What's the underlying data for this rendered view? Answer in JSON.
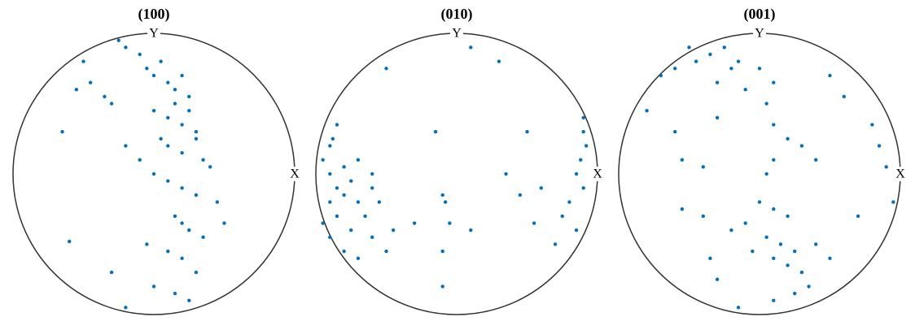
{
  "chart_data": [
    {
      "type": "scatter",
      "title": "(100)",
      "x_label": "X",
      "y_label": "Y",
      "color": "#0072bd",
      "xlim": [
        -1,
        1
      ],
      "ylim": [
        -1,
        1
      ],
      "x": [
        -0.25,
        -0.2,
        -0.1,
        -0.05,
        0.0,
        0.05,
        0.1,
        0.15,
        0.2,
        0.25,
        -0.5,
        -0.45,
        -0.55,
        -0.3,
        -0.35,
        0.0,
        0.1,
        0.15,
        0.2,
        0.25,
        0.3,
        0.05,
        0.1,
        0.2,
        0.3,
        0.35,
        0.4,
        -0.2,
        -0.1,
        0.0,
        0.1,
        0.2,
        0.3,
        0.45,
        0.15,
        0.2,
        0.25,
        0.35,
        0.5,
        -0.05,
        0.1,
        0.2,
        0.3,
        -0.65,
        -0.6,
        -0.3,
        0.0,
        0.15,
        0.25,
        -0.2
      ],
      "y": [
        0.95,
        0.9,
        0.85,
        0.75,
        0.7,
        0.8,
        0.65,
        0.6,
        0.7,
        0.55,
        0.8,
        0.65,
        0.6,
        0.5,
        0.55,
        0.45,
        0.4,
        0.5,
        0.35,
        0.45,
        0.3,
        0.25,
        0.2,
        0.15,
        0.25,
        0.1,
        0.05,
        0.2,
        0.1,
        0.0,
        -0.05,
        -0.1,
        -0.15,
        -0.2,
        -0.3,
        -0.35,
        -0.4,
        -0.45,
        -0.35,
        -0.5,
        -0.55,
        -0.6,
        -0.7,
        0.3,
        -0.48,
        -0.7,
        -0.8,
        -0.85,
        -0.9,
        -0.95
      ]
    },
    {
      "type": "scatter",
      "title": "(010)",
      "x_label": "X",
      "y_label": "Y",
      "color": "#0072bd",
      "xlim": [
        -1,
        1
      ],
      "ylim": [
        -1,
        1
      ],
      "x": [
        -0.95,
        -0.9,
        -0.85,
        -0.9,
        -0.8,
        -0.75,
        -0.7,
        -0.85,
        -0.8,
        -0.9,
        -0.7,
        -0.65,
        -0.75,
        -0.6,
        -0.5,
        -0.9,
        -0.8,
        -0.95,
        -0.6,
        -0.55,
        -0.85,
        -0.45,
        -0.7,
        -0.88,
        -0.6,
        0.9,
        0.92,
        0.88,
        0.85,
        0.9,
        0.8,
        0.75,
        0.85,
        0.7,
        0.9,
        0.55,
        0.45,
        0.35,
        0.6,
        -0.1,
        -0.08,
        -0.05,
        -0.1,
        0.1,
        -0.3,
        -0.15,
        0.3,
        0.1,
        -0.5,
        0.5,
        -0.1
      ],
      "y": [
        0.1,
        0.0,
        -0.1,
        -0.2,
        -0.15,
        -0.05,
        -0.2,
        -0.3,
        0.05,
        0.2,
        0.1,
        -0.3,
        -0.4,
        -0.45,
        -0.55,
        -0.45,
        -0.55,
        -0.35,
        0.0,
        -0.2,
        0.35,
        -0.4,
        -0.6,
        0.25,
        -0.1,
        0.3,
        0.2,
        0.1,
        0.0,
        -0.1,
        -0.2,
        -0.3,
        -0.4,
        -0.5,
        0.4,
        -0.35,
        -0.15,
        0.0,
        -0.1,
        -0.15,
        -0.2,
        -0.35,
        -0.55,
        -0.4,
        -0.35,
        0.3,
        0.8,
        0.9,
        0.75,
        0.3,
        -0.8
      ]
    },
    {
      "type": "scatter",
      "title": "(001)",
      "x_label": "X",
      "y_label": "Y",
      "color": "#0072bd",
      "xlim": [
        -1,
        1
      ],
      "ylim": [
        -1,
        1
      ],
      "x": [
        -0.5,
        -0.45,
        -0.35,
        -0.25,
        -0.2,
        -0.6,
        -0.7,
        -0.3,
        -0.1,
        -0.15,
        0.0,
        0.1,
        0.05,
        -0.3,
        -0.8,
        -0.6,
        -0.55,
        -0.4,
        0.1,
        0.2,
        0.3,
        0.4,
        0.1,
        0.05,
        0.8,
        0.85,
        0.9,
        0.95,
        0.6,
        0.5,
        0.0,
        0.1,
        0.2,
        -0.1,
        -0.2,
        0.05,
        0.15,
        0.25,
        -0.05,
        0.1,
        0.2,
        0.3,
        0.35,
        0.25,
        0.1,
        -0.35,
        -0.3,
        -0.4,
        -0.55,
        0.4,
        0.5,
        0.7,
        -0.15
      ],
      "y": [
        0.9,
        0.8,
        0.85,
        0.9,
        0.75,
        0.75,
        0.7,
        0.65,
        0.6,
        0.8,
        0.75,
        0.65,
        0.5,
        0.4,
        0.45,
        0.3,
        0.1,
        0.05,
        0.35,
        0.25,
        0.2,
        0.1,
        0.1,
        0.0,
        0.35,
        0.2,
        0.05,
        -0.2,
        0.55,
        0.7,
        -0.2,
        -0.25,
        -0.3,
        -0.35,
        -0.4,
        -0.45,
        -0.5,
        -0.55,
        -0.55,
        -0.6,
        -0.65,
        -0.7,
        -0.8,
        -0.85,
        -0.9,
        -0.6,
        -0.75,
        -0.3,
        -0.25,
        -0.5,
        -0.6,
        -0.3,
        -0.95
      ]
    }
  ]
}
